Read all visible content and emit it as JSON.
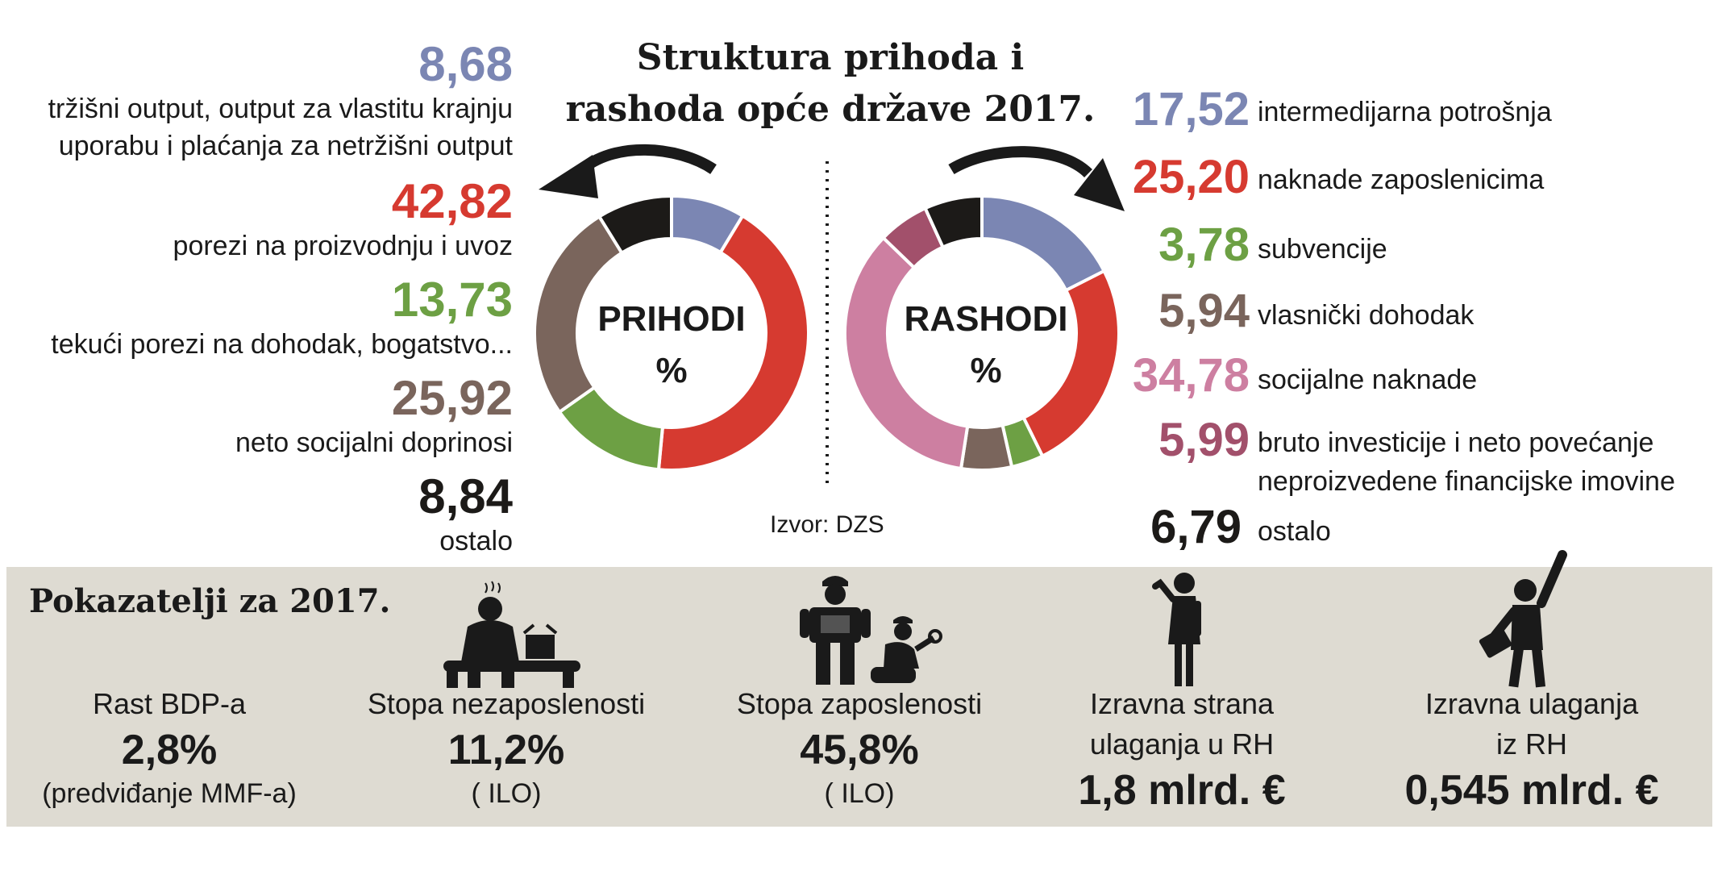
{
  "title_line1": "Struktura prihoda i",
  "title_line2": "rashoda opće države 2017.",
  "source": "Izvor: DZS",
  "chart_data": [
    {
      "type": "pie",
      "title": "PRIHODI",
      "unit": "%",
      "categories": [
        "tržišni output, output za vlastitu krajnju uporabu i plaćanja za netržišni output",
        "porezi na proizvodnju i uvoz",
        "tekući porezi na dohodak, bogatstvo...",
        "neto socijalni doprinosi",
        "ostalo"
      ],
      "values": [
        8.68,
        42.82,
        13.73,
        25.92,
        8.84
      ],
      "labels": [
        "8,68",
        "42,82",
        "13,73",
        "25,92",
        "8,84"
      ],
      "label_lines": [
        [
          "tržišni output, output za vlastitu krajnju",
          "uporabu i plaćanja za netržišni output"
        ],
        [
          "porezi na proizvodnju i uvoz"
        ],
        [
          "tekući porezi na dohodak, bogatstvo..."
        ],
        [
          "neto socijalni doprinosi"
        ],
        [
          "ostalo"
        ]
      ],
      "colors": [
        "#7b86b3",
        "#d63a30",
        "#6da044",
        "#7a655c",
        "#1c1a18"
      ]
    },
    {
      "type": "pie",
      "title": "RASHODI",
      "unit": "%",
      "categories": [
        "intermedijarna potrošnja",
        "naknade zaposlenicima",
        "subvencije",
        "vlasnički dohodak",
        "socijalne naknade",
        "bruto investicije i neto povećanje neproizvedene financijske imovine",
        "ostalo"
      ],
      "values": [
        17.52,
        25.2,
        3.78,
        5.94,
        34.78,
        5.99,
        6.79
      ],
      "labels": [
        "17,52",
        "25,20",
        "3,78",
        "5,94",
        "34,78",
        "5,99",
        "6,79"
      ],
      "label_lines": [
        [
          "intermedijarna potrošnja"
        ],
        [
          "naknade zaposlenicima"
        ],
        [
          "subvencije"
        ],
        [
          "vlasnički dohodak"
        ],
        [
          "socijalne naknade"
        ],
        [
          "bruto investicije i neto povećanje",
          "neproizvedene financijske imovine"
        ],
        [
          "ostalo"
        ]
      ],
      "colors": [
        "#7b86b3",
        "#d63a30",
        "#6da044",
        "#7a655c",
        "#cd7fa1",
        "#a2506b",
        "#1c1a18"
      ]
    }
  ],
  "indicators": {
    "title": "Pokazatelji za 2017.",
    "items": [
      {
        "label1": "Rast BDP-a",
        "label2": "",
        "value": "2,8%",
        "note": "(predviđanje MMF-a)"
      },
      {
        "label1": "Stopa nezaposlenosti",
        "label2": "",
        "value": "11,2%",
        "note": "( ILO)"
      },
      {
        "label1": "Stopa zaposlenosti",
        "label2": "",
        "value": "45,8%",
        "note": "( ILO)"
      },
      {
        "label1": "Izravna strana",
        "label2": "ulaganja u RH",
        "value": "1,8 mlrd. €",
        "note": ""
      },
      {
        "label1": "Izravna ulaganja",
        "label2": "iz RH",
        "value": "0,545 mlrd. €",
        "note": ""
      }
    ]
  },
  "icons": [
    "unemployed-person-icon",
    "workers-icon",
    "businesswoman-icon",
    "businessman-cheering-icon"
  ]
}
